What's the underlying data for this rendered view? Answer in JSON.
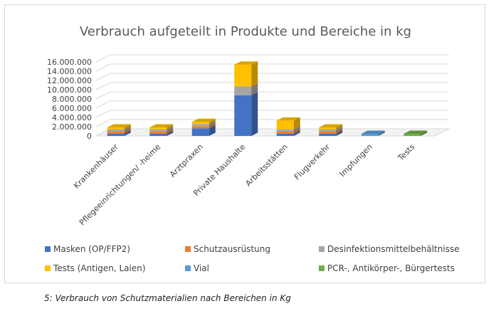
{
  "caption": "5: Verbrauch von Schutzmaterialien nach Bereichen in Kg",
  "chart_data": {
    "type": "bar",
    "stacked": true,
    "three_d": true,
    "title": "Verbrauch aufgeteilt in Produkte und Bereiche in kg",
    "xlabel": "",
    "ylabel": "",
    "ylim": [
      0,
      16000000
    ],
    "yticks": [
      "0",
      "2.000.000",
      "4.000.000",
      "6.000.000",
      "8.000.000",
      "10.000.000",
      "12.000.000",
      "14.000.000",
      "16.000.000"
    ],
    "grid": true,
    "legend_position": "bottom",
    "categories": [
      "Krankenhäuser",
      "Pflegeeinrichtungen/ -heime",
      "Arztpraxen",
      "Private Haushalte",
      "Arbeitsstätten",
      "Flugverkehr",
      "Impfungen",
      "Tests"
    ],
    "series": [
      {
        "name": "Masken (OP/FFP2)",
        "color": "#4472c4",
        "values": [
          50000,
          350000,
          1650000,
          8800000,
          250000,
          20000,
          0,
          0
        ]
      },
      {
        "name": "Schutzausrüstung",
        "color": "#ed7d31",
        "values": [
          10000,
          20000,
          50000,
          0,
          50000,
          5000,
          0,
          0
        ]
      },
      {
        "name": "Desinfektionsmittelbehältnisse",
        "color": "#a5a5a5",
        "values": [
          20000,
          150000,
          100000,
          1900000,
          500000,
          10000,
          0,
          0
        ]
      },
      {
        "name": "Tests (Antigen,  Laien)",
        "color": "#ffc000",
        "values": [
          50000,
          100000,
          100000,
          4700000,
          1900000,
          5000,
          0,
          0
        ]
      },
      {
        "name": "Vial",
        "color": "#5b9bd5",
        "values": [
          0,
          0,
          0,
          0,
          0,
          0,
          100000,
          0
        ]
      },
      {
        "name": "PCR-, Antikörper-, Bürgertests",
        "color": "#70ad47",
        "values": [
          0,
          0,
          0,
          0,
          0,
          0,
          0,
          450000
        ]
      }
    ]
  }
}
